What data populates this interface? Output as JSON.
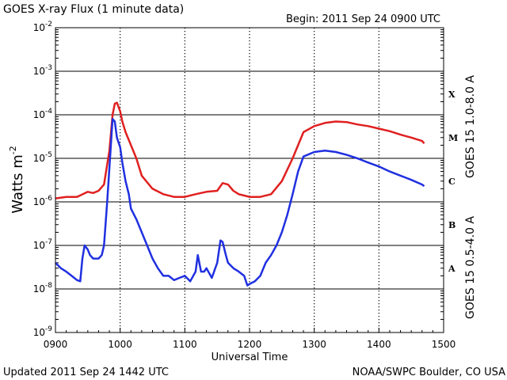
{
  "chart_data": {
    "type": "line",
    "title": "GOES X-ray Flux (1 minute data)",
    "begin": "Begin: 2011 Sep 24 0900 UTC",
    "updated": "Updated 2011 Sep 24 1442 UTC",
    "credit": "NOAA/SWPC Boulder, CO USA",
    "xlabel": "Universal Time",
    "ylabel_base": "Watts m",
    "ylabel_exp": "-2",
    "y_scale": "log",
    "ylim": [
      1e-09,
      0.01
    ],
    "xlim": [
      "0900",
      "1500"
    ],
    "x_ticks": [
      "0900",
      "1000",
      "1100",
      "1200",
      "1300",
      "1400",
      "1500"
    ],
    "y_ticks": [
      {
        "value": 1e-09,
        "base": "10",
        "exp": "-9"
      },
      {
        "value": 1e-08,
        "base": "10",
        "exp": "-8"
      },
      {
        "value": 1e-07,
        "base": "10",
        "exp": "-7"
      },
      {
        "value": 1e-06,
        "base": "10",
        "exp": "-6"
      },
      {
        "value": 1e-05,
        "base": "10",
        "exp": "-5"
      },
      {
        "value": 0.0001,
        "base": "10",
        "exp": "-4"
      },
      {
        "value": 0.001,
        "base": "10",
        "exp": "-3"
      },
      {
        "value": 0.01,
        "base": "10",
        "exp": "-2"
      }
    ],
    "flare_classes": [
      {
        "label": "A",
        "value": 3e-08
      },
      {
        "label": "B",
        "value": 3e-07
      },
      {
        "label": "C",
        "value": 3e-06
      },
      {
        "label": "M",
        "value": 3e-05
      },
      {
        "label": "X",
        "value": 0.0003
      }
    ],
    "grid": true,
    "series": [
      {
        "name": "GOES 15 1.0-8.0 A",
        "color": "#e02020",
        "x": [
          "0900",
          "0910",
          "0920",
          "0930",
          "0935",
          "0940",
          "0945",
          "0950",
          "0953",
          "0955",
          "0957",
          "1000",
          "1002",
          "1005",
          "1010",
          "1015",
          "1020",
          "1030",
          "1040",
          "1050",
          "1100",
          "1110",
          "1120",
          "1130",
          "1135",
          "1140",
          "1145",
          "1150",
          "1155",
          "1200",
          "1210",
          "1220",
          "1230",
          "1240",
          "1250",
          "1300",
          "1310",
          "1320",
          "1330",
          "1340",
          "1350",
          "1400",
          "1410",
          "1420",
          "1430",
          "1440",
          "1442"
        ],
        "values": [
          1.2e-06,
          1.3e-06,
          1.3e-06,
          1.7e-06,
          1.6e-06,
          1.8e-06,
          2.5e-06,
          1.5e-05,
          0.0001,
          0.00018,
          0.00019,
          0.00012,
          7e-05,
          4e-05,
          2e-05,
          1e-05,
          4e-06,
          2e-06,
          1.5e-06,
          1.3e-06,
          1.3e-06,
          1.5e-06,
          1.7e-06,
          1.8e-06,
          2.7e-06,
          2.5e-06,
          1.8e-06,
          1.5e-06,
          1.4e-06,
          1.3e-06,
          1.3e-06,
          1.5e-06,
          3e-06,
          1e-05,
          4e-05,
          5.5e-05,
          6.5e-05,
          7e-05,
          6.8e-05,
          6e-05,
          5.5e-05,
          4.8e-05,
          4.2e-05,
          3.5e-05,
          3e-05,
          2.5e-05,
          2.2e-05
        ]
      },
      {
        "name": "GOES 15 0.5-4.0 A",
        "color": "#2030e0",
        "x": [
          "0900",
          "0905",
          "0910",
          "0915",
          "0920",
          "0923",
          "0925",
          "0927",
          "0930",
          "0932",
          "0935",
          "0940",
          "0943",
          "0945",
          "0948",
          "0950",
          "0953",
          "0955",
          "0957",
          "1000",
          "1002",
          "1005",
          "1008",
          "1010",
          "1015",
          "1020",
          "1025",
          "1030",
          "1035",
          "1040",
          "1045",
          "1050",
          "1055",
          "1100",
          "1105",
          "1110",
          "1112",
          "1115",
          "1118",
          "1120",
          "1125",
          "1130",
          "1133",
          "1135",
          "1138",
          "1140",
          "1145",
          "1150",
          "1155",
          "1158",
          "1200",
          "1205",
          "1210",
          "1215",
          "1220",
          "1225",
          "1230",
          "1235",
          "1240",
          "1245",
          "1250",
          "1300",
          "1310",
          "1320",
          "1330",
          "1340",
          "1350",
          "1400",
          "1410",
          "1420",
          "1430",
          "1440",
          "1442"
        ],
        "values": [
          4e-08,
          3e-08,
          2.5e-08,
          2e-08,
          1.6e-08,
          1.5e-08,
          5e-08,
          1e-07,
          8e-08,
          6e-08,
          5e-08,
          5e-08,
          6e-08,
          1e-07,
          1e-06,
          6e-06,
          8e-05,
          7e-05,
          3e-05,
          1.8e-05,
          8e-06,
          3e-06,
          1.5e-06,
          7e-07,
          4e-07,
          2e-07,
          1e-07,
          5e-08,
          3e-08,
          2e-08,
          2e-08,
          1.6e-08,
          1.8e-08,
          2e-08,
          1.5e-08,
          2.5e-08,
          6e-08,
          2.5e-08,
          2.5e-08,
          3e-08,
          1.8e-08,
          4e-08,
          1.3e-07,
          1.2e-07,
          6e-08,
          4e-08,
          3e-08,
          2.5e-08,
          2e-08,
          1.2e-08,
          1.3e-08,
          1.5e-08,
          2e-08,
          4e-08,
          6e-08,
          1e-07,
          2e-07,
          5e-07,
          1.5e-06,
          5e-06,
          1.1e-05,
          1.4e-05,
          1.5e-05,
          1.4e-05,
          1.2e-05,
          1e-05,
          8e-06,
          6.5e-06,
          5e-06,
          4e-06,
          3.2e-06,
          2.5e-06,
          2.3e-06
        ]
      }
    ]
  }
}
